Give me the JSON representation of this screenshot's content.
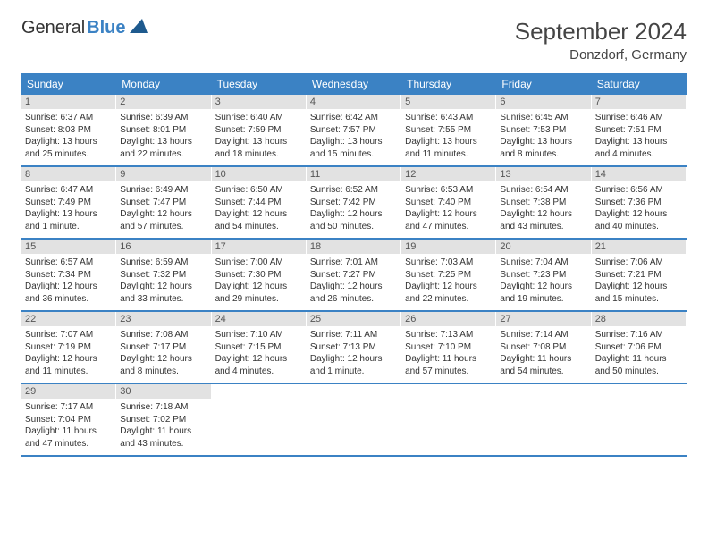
{
  "brand": {
    "first": "General",
    "second": "Blue"
  },
  "title": "September 2024",
  "location": "Donzdorf, Germany",
  "colors": {
    "header_bg": "#3b82c4",
    "header_text": "#ffffff",
    "daynum_bg": "#e2e2e2",
    "week_border": "#3b82c4",
    "body_text": "#333333"
  },
  "typography": {
    "title_fontsize": 26,
    "location_fontsize": 15,
    "dayhead_fontsize": 12,
    "daynum_fontsize": 11,
    "info_fontsize": 10
  },
  "day_names": [
    "Sunday",
    "Monday",
    "Tuesday",
    "Wednesday",
    "Thursday",
    "Friday",
    "Saturday"
  ],
  "weeks": [
    [
      {
        "n": "1",
        "sr": "Sunrise: 6:37 AM",
        "ss": "Sunset: 8:03 PM",
        "d1": "Daylight: 13 hours",
        "d2": "and 25 minutes."
      },
      {
        "n": "2",
        "sr": "Sunrise: 6:39 AM",
        "ss": "Sunset: 8:01 PM",
        "d1": "Daylight: 13 hours",
        "d2": "and 22 minutes."
      },
      {
        "n": "3",
        "sr": "Sunrise: 6:40 AM",
        "ss": "Sunset: 7:59 PM",
        "d1": "Daylight: 13 hours",
        "d2": "and 18 minutes."
      },
      {
        "n": "4",
        "sr": "Sunrise: 6:42 AM",
        "ss": "Sunset: 7:57 PM",
        "d1": "Daylight: 13 hours",
        "d2": "and 15 minutes."
      },
      {
        "n": "5",
        "sr": "Sunrise: 6:43 AM",
        "ss": "Sunset: 7:55 PM",
        "d1": "Daylight: 13 hours",
        "d2": "and 11 minutes."
      },
      {
        "n": "6",
        "sr": "Sunrise: 6:45 AM",
        "ss": "Sunset: 7:53 PM",
        "d1": "Daylight: 13 hours",
        "d2": "and 8 minutes."
      },
      {
        "n": "7",
        "sr": "Sunrise: 6:46 AM",
        "ss": "Sunset: 7:51 PM",
        "d1": "Daylight: 13 hours",
        "d2": "and 4 minutes."
      }
    ],
    [
      {
        "n": "8",
        "sr": "Sunrise: 6:47 AM",
        "ss": "Sunset: 7:49 PM",
        "d1": "Daylight: 13 hours",
        "d2": "and 1 minute."
      },
      {
        "n": "9",
        "sr": "Sunrise: 6:49 AM",
        "ss": "Sunset: 7:47 PM",
        "d1": "Daylight: 12 hours",
        "d2": "and 57 minutes."
      },
      {
        "n": "10",
        "sr": "Sunrise: 6:50 AM",
        "ss": "Sunset: 7:44 PM",
        "d1": "Daylight: 12 hours",
        "d2": "and 54 minutes."
      },
      {
        "n": "11",
        "sr": "Sunrise: 6:52 AM",
        "ss": "Sunset: 7:42 PM",
        "d1": "Daylight: 12 hours",
        "d2": "and 50 minutes."
      },
      {
        "n": "12",
        "sr": "Sunrise: 6:53 AM",
        "ss": "Sunset: 7:40 PM",
        "d1": "Daylight: 12 hours",
        "d2": "and 47 minutes."
      },
      {
        "n": "13",
        "sr": "Sunrise: 6:54 AM",
        "ss": "Sunset: 7:38 PM",
        "d1": "Daylight: 12 hours",
        "d2": "and 43 minutes."
      },
      {
        "n": "14",
        "sr": "Sunrise: 6:56 AM",
        "ss": "Sunset: 7:36 PM",
        "d1": "Daylight: 12 hours",
        "d2": "and 40 minutes."
      }
    ],
    [
      {
        "n": "15",
        "sr": "Sunrise: 6:57 AM",
        "ss": "Sunset: 7:34 PM",
        "d1": "Daylight: 12 hours",
        "d2": "and 36 minutes."
      },
      {
        "n": "16",
        "sr": "Sunrise: 6:59 AM",
        "ss": "Sunset: 7:32 PM",
        "d1": "Daylight: 12 hours",
        "d2": "and 33 minutes."
      },
      {
        "n": "17",
        "sr": "Sunrise: 7:00 AM",
        "ss": "Sunset: 7:30 PM",
        "d1": "Daylight: 12 hours",
        "d2": "and 29 minutes."
      },
      {
        "n": "18",
        "sr": "Sunrise: 7:01 AM",
        "ss": "Sunset: 7:27 PM",
        "d1": "Daylight: 12 hours",
        "d2": "and 26 minutes."
      },
      {
        "n": "19",
        "sr": "Sunrise: 7:03 AM",
        "ss": "Sunset: 7:25 PM",
        "d1": "Daylight: 12 hours",
        "d2": "and 22 minutes."
      },
      {
        "n": "20",
        "sr": "Sunrise: 7:04 AM",
        "ss": "Sunset: 7:23 PM",
        "d1": "Daylight: 12 hours",
        "d2": "and 19 minutes."
      },
      {
        "n": "21",
        "sr": "Sunrise: 7:06 AM",
        "ss": "Sunset: 7:21 PM",
        "d1": "Daylight: 12 hours",
        "d2": "and 15 minutes."
      }
    ],
    [
      {
        "n": "22",
        "sr": "Sunrise: 7:07 AM",
        "ss": "Sunset: 7:19 PM",
        "d1": "Daylight: 12 hours",
        "d2": "and 11 minutes."
      },
      {
        "n": "23",
        "sr": "Sunrise: 7:08 AM",
        "ss": "Sunset: 7:17 PM",
        "d1": "Daylight: 12 hours",
        "d2": "and 8 minutes."
      },
      {
        "n": "24",
        "sr": "Sunrise: 7:10 AM",
        "ss": "Sunset: 7:15 PM",
        "d1": "Daylight: 12 hours",
        "d2": "and 4 minutes."
      },
      {
        "n": "25",
        "sr": "Sunrise: 7:11 AM",
        "ss": "Sunset: 7:13 PM",
        "d1": "Daylight: 12 hours",
        "d2": "and 1 minute."
      },
      {
        "n": "26",
        "sr": "Sunrise: 7:13 AM",
        "ss": "Sunset: 7:10 PM",
        "d1": "Daylight: 11 hours",
        "d2": "and 57 minutes."
      },
      {
        "n": "27",
        "sr": "Sunrise: 7:14 AM",
        "ss": "Sunset: 7:08 PM",
        "d1": "Daylight: 11 hours",
        "d2": "and 54 minutes."
      },
      {
        "n": "28",
        "sr": "Sunrise: 7:16 AM",
        "ss": "Sunset: 7:06 PM",
        "d1": "Daylight: 11 hours",
        "d2": "and 50 minutes."
      }
    ],
    [
      {
        "n": "29",
        "sr": "Sunrise: 7:17 AM",
        "ss": "Sunset: 7:04 PM",
        "d1": "Daylight: 11 hours",
        "d2": "and 47 minutes."
      },
      {
        "n": "30",
        "sr": "Sunrise: 7:18 AM",
        "ss": "Sunset: 7:02 PM",
        "d1": "Daylight: 11 hours",
        "d2": "and 43 minutes."
      },
      null,
      null,
      null,
      null,
      null
    ]
  ]
}
